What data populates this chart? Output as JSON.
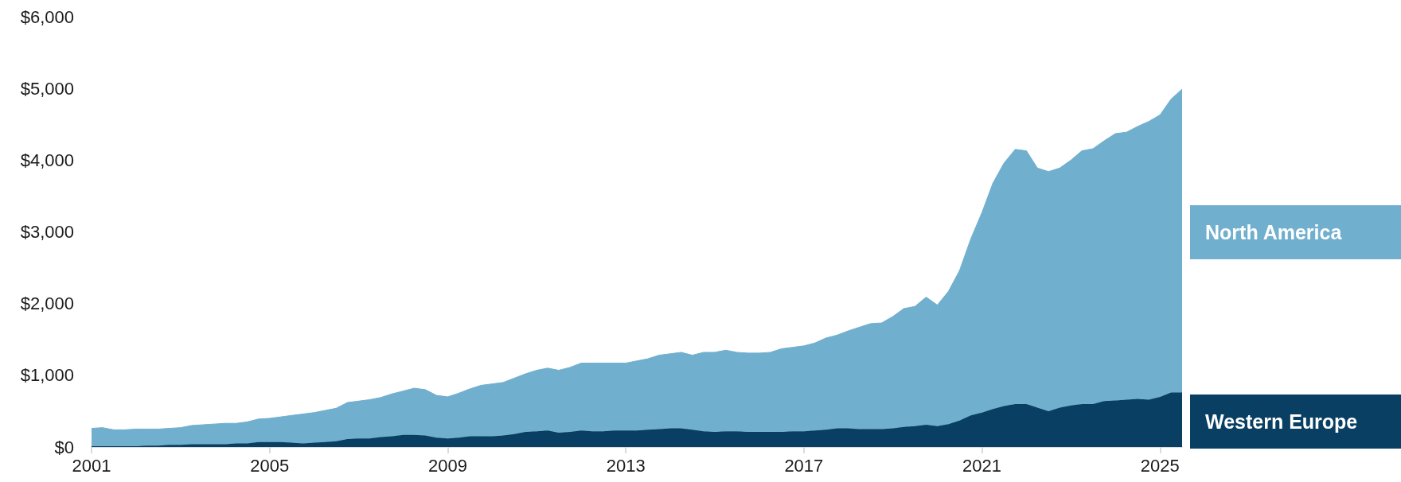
{
  "chart_data": {
    "type": "area",
    "stacked": true,
    "x": [
      "2001-01",
      "2001-04",
      "2001-07",
      "2001-10",
      "2002-01",
      "2002-04",
      "2002-07",
      "2002-10",
      "2003-01",
      "2003-04",
      "2003-07",
      "2003-10",
      "2004-01",
      "2004-04",
      "2004-07",
      "2004-10",
      "2005-01",
      "2005-04",
      "2005-07",
      "2005-10",
      "2006-01",
      "2006-04",
      "2006-07",
      "2006-10",
      "2007-01",
      "2007-04",
      "2007-07",
      "2007-10",
      "2008-01",
      "2008-04",
      "2008-07",
      "2008-10",
      "2009-01",
      "2009-04",
      "2009-07",
      "2009-10",
      "2010-01",
      "2010-04",
      "2010-07",
      "2010-10",
      "2011-01",
      "2011-04",
      "2011-07",
      "2011-10",
      "2012-01",
      "2012-04",
      "2012-07",
      "2012-10",
      "2013-01",
      "2013-04",
      "2013-07",
      "2013-10",
      "2014-01",
      "2014-04",
      "2014-07",
      "2014-10",
      "2015-01",
      "2015-04",
      "2015-07",
      "2015-10",
      "2016-01",
      "2016-04",
      "2016-07",
      "2016-10",
      "2017-01",
      "2017-04",
      "2017-07",
      "2017-10",
      "2018-01",
      "2018-04",
      "2018-07",
      "2018-10",
      "2019-01",
      "2019-04",
      "2019-07",
      "2019-10",
      "2020-01",
      "2020-04",
      "2020-07",
      "2020-10",
      "2021-01",
      "2021-04",
      "2021-07",
      "2021-10",
      "2022-01",
      "2022-04",
      "2022-07",
      "2022-10",
      "2023-01",
      "2023-04",
      "2023-07",
      "2023-10",
      "2024-01",
      "2024-04",
      "2024-07",
      "2024-10",
      "2025-01",
      "2025-04",
      "2025-07"
    ],
    "xlim": [
      "2001-01",
      "2025-07"
    ],
    "xticks": [
      "2001",
      "2005",
      "2009",
      "2013",
      "2017",
      "2021",
      "2025"
    ],
    "ylim": [
      0,
      6000
    ],
    "yticks": [
      {
        "value": 0,
        "label": "$0"
      },
      {
        "value": 1000,
        "label": "$1,000"
      },
      {
        "value": 2000,
        "label": "$2,000"
      },
      {
        "value": 3000,
        "label": "$3,000"
      },
      {
        "value": 4000,
        "label": "$4,000"
      },
      {
        "value": 5000,
        "label": "$5,000"
      },
      {
        "value": 6000,
        "label": "$6,000"
      }
    ],
    "legend": "right",
    "series": [
      {
        "name": "Western Europe",
        "color": "#083f62",
        "values": [
          10,
          10,
          10,
          10,
          10,
          20,
          20,
          30,
          30,
          40,
          40,
          40,
          40,
          50,
          50,
          70,
          70,
          70,
          60,
          50,
          60,
          70,
          80,
          110,
          120,
          120,
          140,
          150,
          170,
          170,
          160,
          130,
          120,
          130,
          150,
          150,
          150,
          160,
          180,
          210,
          220,
          230,
          200,
          210,
          230,
          220,
          220,
          230,
          230,
          230,
          240,
          250,
          260,
          260,
          240,
          220,
          210,
          220,
          220,
          210,
          210,
          210,
          210,
          220,
          220,
          230,
          240,
          260,
          260,
          250,
          250,
          250,
          260,
          280,
          290,
          310,
          290,
          320,
          370,
          440,
          480,
          530,
          570,
          600,
          600,
          550,
          500,
          550,
          580,
          600,
          600,
          640,
          650,
          660,
          670,
          660,
          700,
          760,
          760
        ]
      },
      {
        "name": "North America",
        "color": "#71afce",
        "values": [
          250,
          260,
          230,
          230,
          240,
          230,
          230,
          230,
          240,
          260,
          270,
          280,
          290,
          280,
          300,
          320,
          330,
          350,
          380,
          410,
          420,
          440,
          460,
          510,
          520,
          540,
          550,
          590,
          610,
          650,
          640,
          590,
          580,
          620,
          660,
          710,
          730,
          740,
          780,
          810,
          850,
          870,
          870,
          900,
          940,
          950,
          950,
          940,
          940,
          970,
          990,
          1030,
          1040,
          1060,
          1040,
          1100,
          1110,
          1130,
          1100,
          1100,
          1100,
          1110,
          1160,
          1170,
          1190,
          1220,
          1280,
          1300,
          1360,
          1420,
          1470,
          1480,
          1560,
          1650,
          1670,
          1780,
          1690,
          1850,
          2090,
          2460,
          2790,
          3150,
          3390,
          3550,
          3530,
          3340,
          3340,
          3340,
          3420,
          3530,
          3560,
          3630,
          3720,
          3730,
          3800,
          3880,
          3930,
          4090,
          4230
        ]
      }
    ]
  }
}
